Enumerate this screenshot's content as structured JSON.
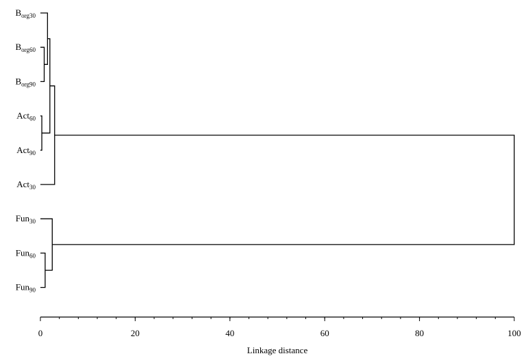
{
  "chart_data": {
    "type": "dendrogram",
    "orientation": "horizontal",
    "title": "",
    "xlabel": "Linkage distance",
    "ylabel": "",
    "xlim": [
      0,
      100
    ],
    "x_ticks": [
      0,
      20,
      40,
      60,
      80,
      100
    ],
    "x_minor_step": 4,
    "leaves": [
      {
        "id": "Borg30",
        "base": "B",
        "sub": "org30"
      },
      {
        "id": "Borg60",
        "base": "B",
        "sub": "org60"
      },
      {
        "id": "Borg90",
        "base": "B",
        "sub": "org90"
      },
      {
        "id": "Act60",
        "base": "Act",
        "sub": "60"
      },
      {
        "id": "Act90",
        "base": "Act",
        "sub": "90"
      },
      {
        "id": "Act30",
        "base": "Act",
        "sub": "30"
      },
      {
        "id": "Fun30",
        "base": "Fun",
        "sub": "30"
      },
      {
        "id": "Fun60",
        "base": "Fun",
        "sub": "60"
      },
      {
        "id": "Fun90",
        "base": "Fun",
        "sub": "90"
      }
    ],
    "merges": [
      {
        "id": "m1",
        "left": "Act60",
        "right": "Act90",
        "distance": 0.3
      },
      {
        "id": "m2",
        "left": "Borg60",
        "right": "Borg90",
        "distance": 0.8
      },
      {
        "id": "m3",
        "left": "Fun60",
        "right": "Fun90",
        "distance": 1.0
      },
      {
        "id": "m4",
        "left": "Borg30",
        "right": "m2",
        "distance": 1.5
      },
      {
        "id": "m5",
        "left": "m4",
        "right": "m1",
        "distance": 2.0
      },
      {
        "id": "m6",
        "left": "Fun30",
        "right": "m3",
        "distance": 2.5
      },
      {
        "id": "m7",
        "left": "m5",
        "right": "Act30",
        "distance": 3.0
      },
      {
        "id": "m8",
        "left": "m7",
        "right": "m6",
        "distance": 100
      }
    ]
  }
}
